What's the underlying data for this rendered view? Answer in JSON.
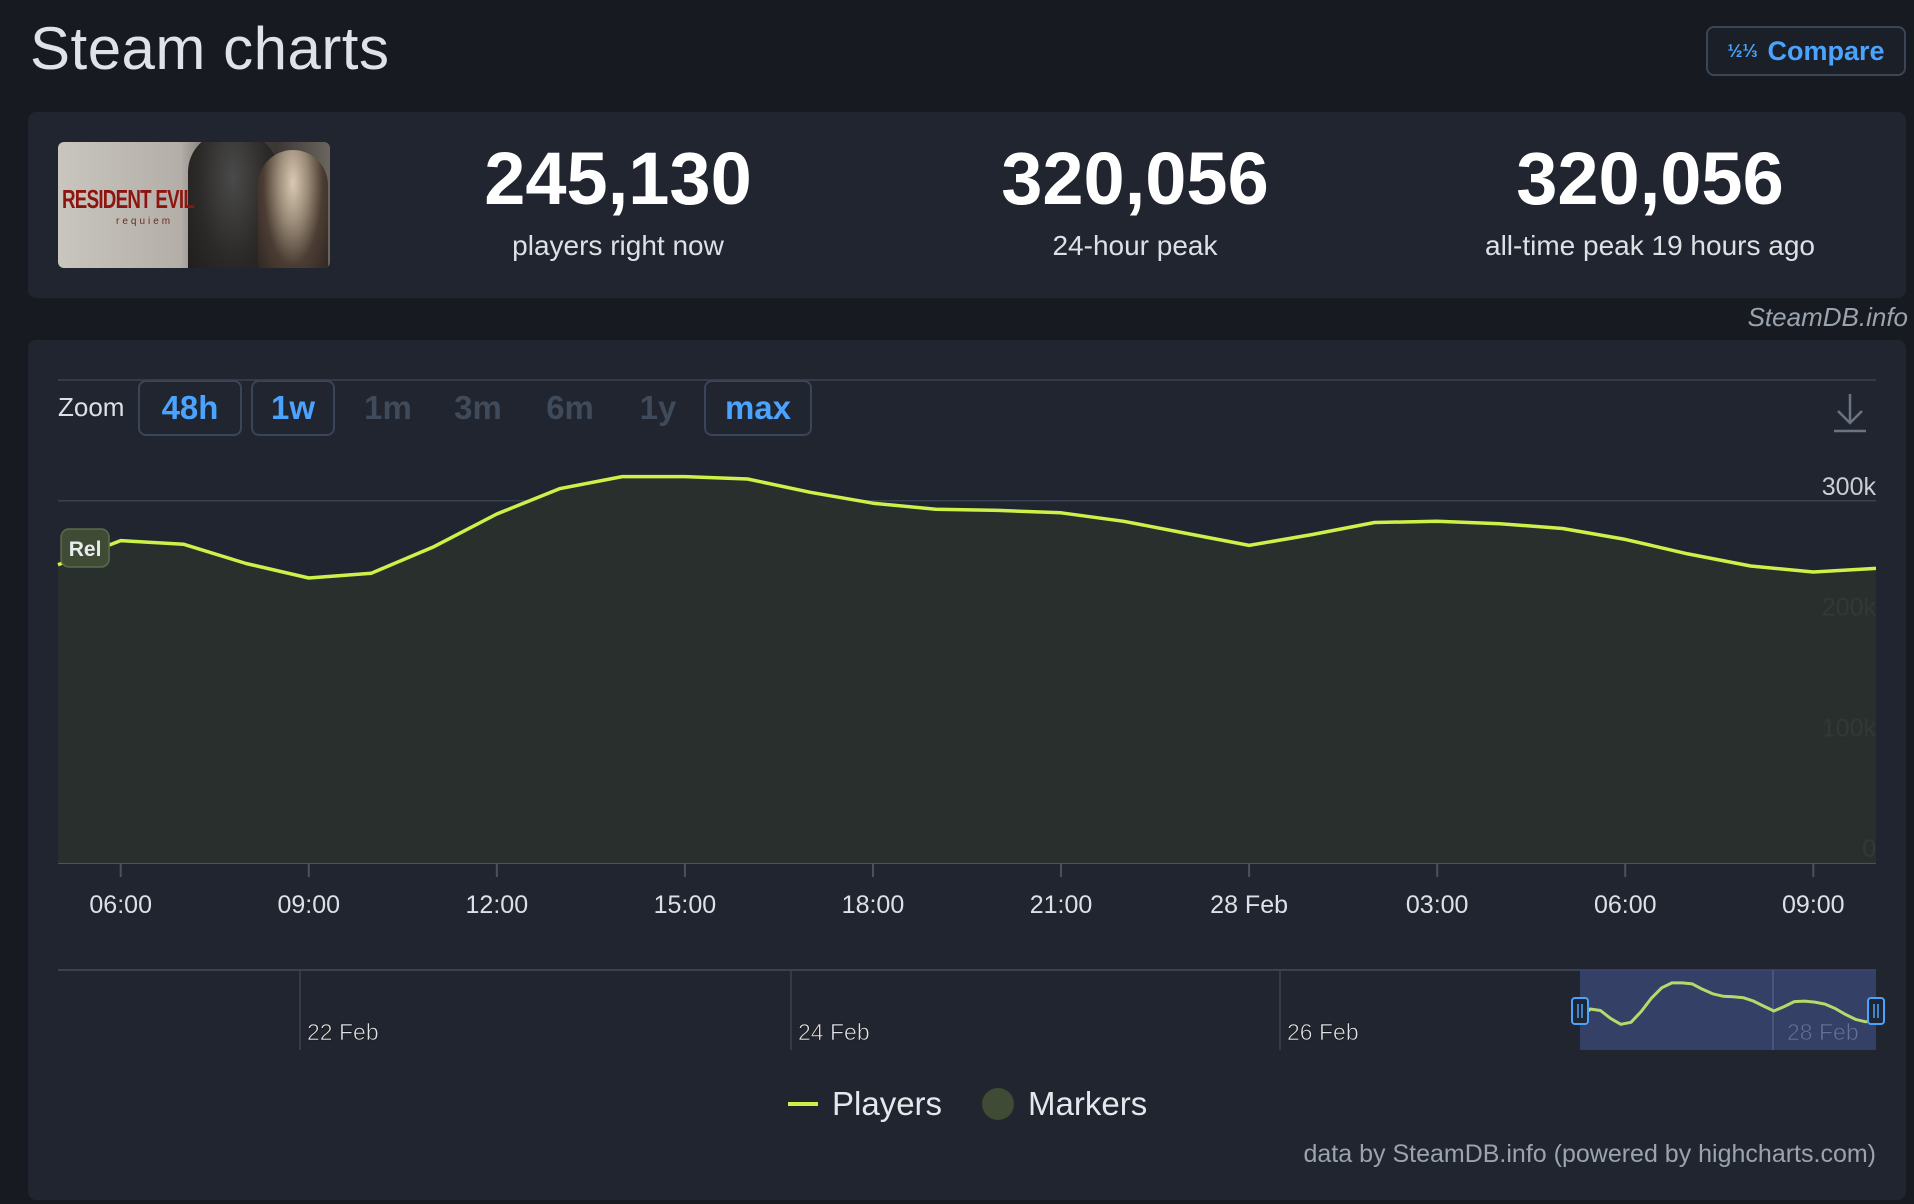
{
  "page": {
    "title": "Steam charts",
    "compare_label": "Compare",
    "compare_icon": "fraction-icon",
    "credit": "SteamDB.info",
    "footer_credit": "data by SteamDB.info (powered by highcharts.com)"
  },
  "game": {
    "thumbnail_text": "RESIDENT EVIL",
    "thumbnail_subtext": "requiem"
  },
  "stats": [
    {
      "value": "245,130",
      "label": "players right now"
    },
    {
      "value": "320,056",
      "label": "24-hour peak"
    },
    {
      "value": "320,056",
      "label": "all-time peak 19 hours ago"
    }
  ],
  "zoom": {
    "label": "Zoom",
    "buttons": [
      {
        "label": "48h",
        "enabled": true
      },
      {
        "label": "1w",
        "enabled": true
      },
      {
        "label": "1m",
        "enabled": false
      },
      {
        "label": "3m",
        "enabled": false
      },
      {
        "label": "6m",
        "enabled": false
      },
      {
        "label": "1y",
        "enabled": false
      },
      {
        "label": "max",
        "enabled": true
      }
    ]
  },
  "legend": {
    "players": "Players",
    "markers": "Markers"
  },
  "chart_data": {
    "type": "area",
    "title": "",
    "xlabel": "",
    "ylabel": "",
    "ylim": [
      0,
      400000
    ],
    "yticks": [
      0,
      100000,
      200000,
      300000
    ],
    "ytick_labels": [
      "0",
      "100k",
      "200k",
      "300k"
    ],
    "xlim": [
      5.0,
      34.0
    ],
    "x_unit": "hours since 27 Feb 00:00",
    "xticks": [
      6,
      9,
      12,
      15,
      18,
      21,
      24,
      27,
      30,
      33
    ],
    "xtick_labels": [
      "06:00",
      "09:00",
      "12:00",
      "15:00",
      "18:00",
      "21:00",
      "28 Feb",
      "03:00",
      "06:00",
      "09:00"
    ],
    "marker_label": "Rel",
    "marker_x": 5.4,
    "series": [
      {
        "name": "Players",
        "color": "#ccf24a",
        "x": [
          5.0,
          6.0,
          7.0,
          8.0,
          9.0,
          10.0,
          11.0,
          12.0,
          13.0,
          14.0,
          15.0,
          16.0,
          17.0,
          18.0,
          19.0,
          20.0,
          21.0,
          22.0,
          23.0,
          24.0,
          25.0,
          26.0,
          27.0,
          28.0,
          29.0,
          30.0,
          31.0,
          32.0,
          33.0,
          34.0
        ],
        "values": [
          247000,
          267000,
          264000,
          248000,
          236000,
          240000,
          262000,
          289000,
          310000,
          320000,
          320000,
          318000,
          307000,
          298000,
          293000,
          292000,
          290000,
          283000,
          273000,
          263000,
          272000,
          282000,
          283000,
          281000,
          277000,
          268000,
          256000,
          246000,
          241000,
          244000
        ]
      }
    ],
    "navigator": {
      "date_labels": [
        "22 Feb",
        "24 Feb",
        "26 Feb",
        "28 Feb"
      ],
      "color": "#ccf24a"
    },
    "grid": true,
    "legend_position": "bottom-center"
  }
}
